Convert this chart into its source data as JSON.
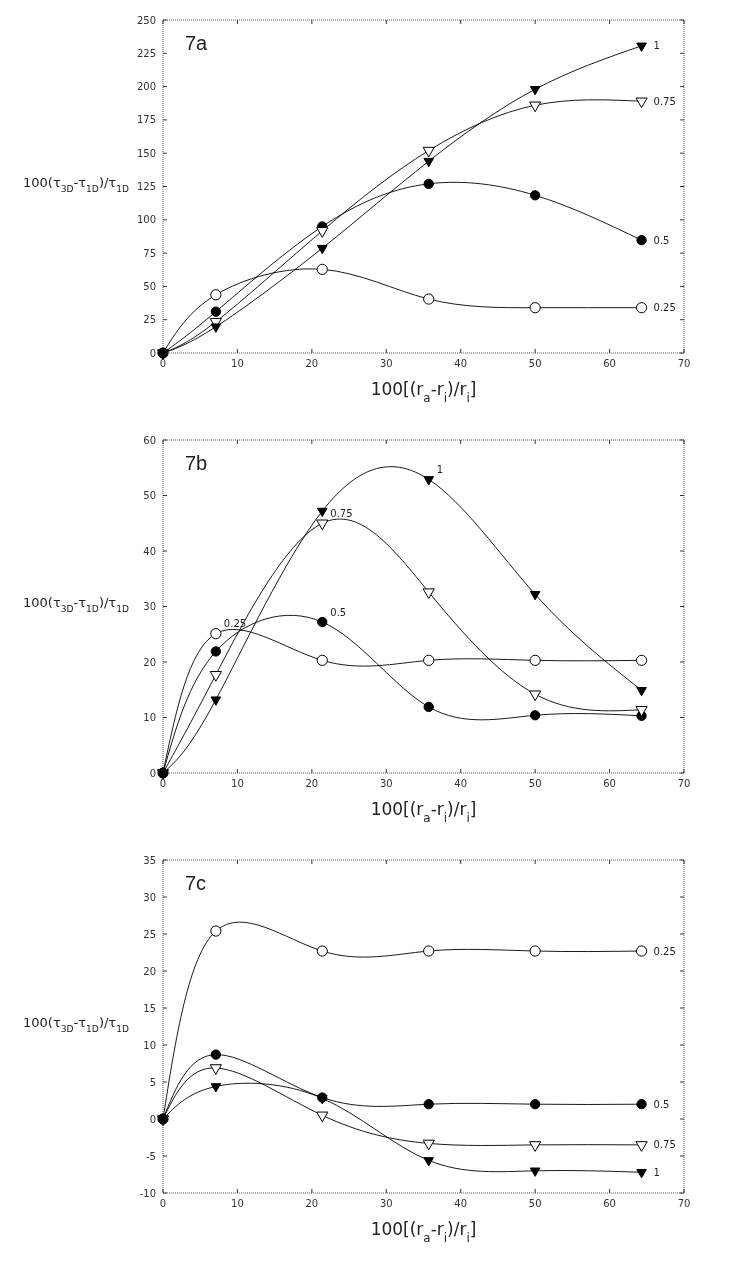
{
  "chart_data": [
    {
      "type": "line",
      "title": "7a",
      "xlabel": "100[(r$_{a}$-r$_{i}$)/r$_{i}$]",
      "ylabel": "100(τ$_{3D}$-τ$_{1D}$)/τ$_{1D}$",
      "x": [
        0,
        7.1,
        21.4,
        35.7,
        50,
        64.3
      ],
      "xlim": [
        0,
        70
      ],
      "xticks": [
        0,
        10,
        20,
        30,
        40,
        50,
        60,
        70
      ],
      "ylim": [
        0,
        250
      ],
      "yticks": [
        0,
        25,
        50,
        75,
        100,
        125,
        150,
        175,
        200,
        225,
        250
      ],
      "grid": false,
      "line_style": "solid",
      "series": [
        {
          "name": "0.25",
          "color": "#000000",
          "marker": "circle",
          "values": [
            0,
            43.7,
            62.8,
            40.5,
            34,
            34
          ]
        },
        {
          "name": "0.5",
          "color": "#000000",
          "marker": "circle",
          "values": [
            0,
            31,
            95,
            127,
            118.4,
            84.7
          ]
        },
        {
          "name": "0.75",
          "color": "#000000",
          "marker": "triangle",
          "values": [
            0,
            23.5,
            91.7,
            152,
            186,
            189
          ]
        },
        {
          "name": "1",
          "color": "#000000",
          "marker": "triangle",
          "values": [
            0,
            19.7,
            78.7,
            144,
            198,
            230.6
          ]
        }
      ]
    },
    {
      "type": "line",
      "title": "7b",
      "xlabel": "100[(r$_{a}$-r$_{i}$)/r$_{i}$]",
      "ylabel": "100(τ$_{3D}$-τ$_{1D}$)/τ$_{1D}$",
      "x": [
        0,
        7.1,
        21.4,
        35.7,
        50,
        64.3
      ],
      "xlim": [
        0,
        70
      ],
      "xticks": [
        0,
        10,
        20,
        30,
        40,
        50,
        60,
        70
      ],
      "ylim": [
        0,
        60
      ],
      "yticks": [
        0,
        10,
        20,
        30,
        40,
        50,
        60
      ],
      "grid": false,
      "line_style": "solid",
      "series": [
        {
          "name": "0.25",
          "color": "#000000",
          "marker": "circle",
          "values": [
            0,
            25.1,
            20.3,
            20.3,
            20.3,
            20.3
          ]
        },
        {
          "name": "0.5",
          "color": "#000000",
          "marker": "circle",
          "values": [
            0,
            21.9,
            27.2,
            11.9,
            10.4,
            10.3
          ]
        },
        {
          "name": "0.75",
          "color": "#000000",
          "marker": "triangle",
          "values": [
            0,
            17.7,
            45,
            32.6,
            14.2,
            11.4
          ]
        },
        {
          "name": "1",
          "color": "#000000",
          "marker": "triangle",
          "values": [
            0,
            13.2,
            47.2,
            52.9,
            32.2,
            14.9
          ]
        }
      ]
    },
    {
      "type": "line",
      "title": "7c",
      "xlabel": "100[(r$_{a}$-r$_{i}$)/r$_{i}$]",
      "ylabel": "100(τ$_{3D}$-τ$_{1D}$)/τ$_{1D}$",
      "x": [
        0,
        7.1,
        21.4,
        35.7,
        50,
        64.3
      ],
      "xlim": [
        0,
        70
      ],
      "xticks": [
        0,
        10,
        20,
        30,
        40,
        50,
        60,
        70
      ],
      "ylim": [
        -10,
        35
      ],
      "yticks": [
        -10,
        -5,
        0,
        5,
        10,
        15,
        20,
        25,
        30,
        35
      ],
      "grid": false,
      "line_style": "solid",
      "series": [
        {
          "name": "0.25",
          "color": "#000000",
          "marker": "circle",
          "values": [
            0,
            25.4,
            22.7,
            22.7,
            22.7,
            22.7
          ]
        },
        {
          "name": "0.5",
          "color": "#000000",
          "marker": "circle",
          "values": [
            0,
            8.7,
            2.9,
            2.0,
            2.0,
            2.0
          ]
        },
        {
          "name": "0.75",
          "color": "#000000",
          "marker": "triangle",
          "values": [
            0,
            6.9,
            0.5,
            -3.3,
            -3.5,
            -3.5
          ]
        },
        {
          "name": "1",
          "color": "#000000",
          "marker": "triangle",
          "values": [
            0,
            4.4,
            2.8,
            -5.6,
            -7.0,
            -7.2
          ]
        }
      ]
    }
  ]
}
